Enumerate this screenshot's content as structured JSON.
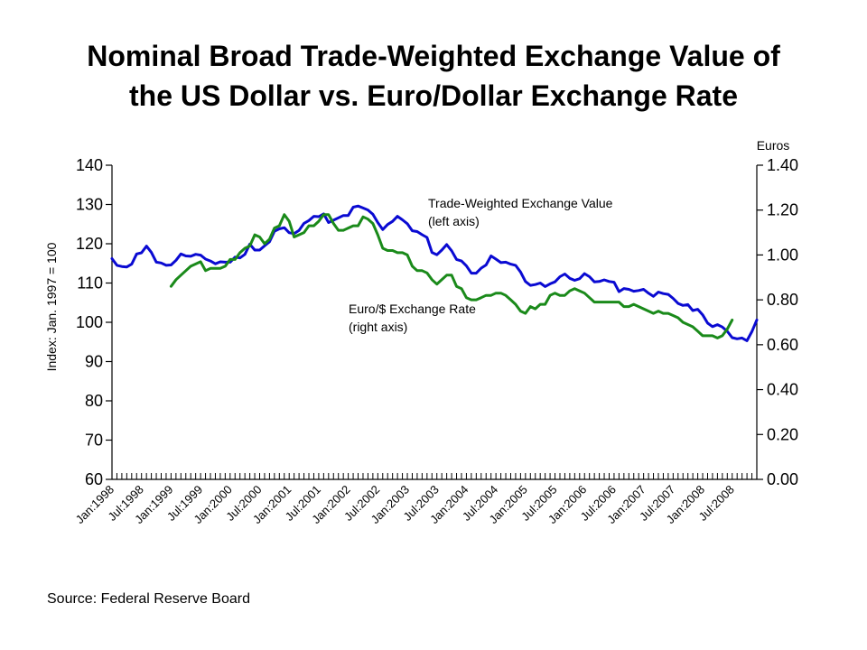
{
  "title": {
    "line1": "Nominal Broad Trade-Weighted Exchange Value of",
    "line2": "the US Dollar vs. Euro/Dollar Exchange Rate"
  },
  "source": "Source:  Federal Reserve Board",
  "chart_data": {
    "type": "line",
    "grid": false,
    "left_axis": {
      "label": "Index:  Jan. 1997 = 100",
      "range": [
        60,
        140
      ],
      "ticks": [
        "60",
        "70",
        "80",
        "90",
        "100",
        "110",
        "120",
        "130",
        "140"
      ]
    },
    "right_axis": {
      "label": "Euros",
      "range": [
        0.0,
        1.4
      ],
      "ticks": [
        "0.00",
        "0.20",
        "0.40",
        "0.60",
        "0.80",
        "1.00",
        "1.20",
        "1.40"
      ]
    },
    "x_tick_labels": [
      "Jan:1998",
      "Jul:1998",
      "Jan:1999",
      "Jul:1999",
      "Jan:2000",
      "Jul:2000",
      "Jan:2001",
      "Jul:2001",
      "Jan:2002",
      "Jul:2002",
      "Jan:2003",
      "Jul:2003",
      "Jan:2004",
      "Jul:2004",
      "Jan:2005",
      "Jul:2005",
      "Jan:2006",
      "Jul:2006",
      "Jan:2007",
      "Jul:2007",
      "Jan:2008",
      "Jul:2008"
    ],
    "start_label": "Jan:1998",
    "series": [
      {
        "name": "Trade-Weighted Exchange Value (left axis)",
        "axis": "left",
        "color": "#0a0ad2",
        "start_index": 0,
        "values": [
          116.2,
          114.5,
          114.2,
          114.1,
          114.8,
          117.4,
          117.7,
          119.4,
          117.8,
          115.3,
          115.1,
          114.5,
          114.6,
          115.8,
          117.4,
          116.9,
          116.8,
          117.3,
          117.1,
          116.1,
          115.6,
          114.9,
          115.4,
          115.3,
          115.3,
          116.6,
          116.4,
          117.3,
          119.9,
          118.4,
          118.4,
          119.5,
          120.5,
          123.2,
          123.8,
          124.1,
          122.8,
          122.6,
          123.4,
          125.2,
          125.9,
          127.0,
          126.9,
          127.6,
          125.4,
          126.0,
          126.6,
          127.2,
          127.2,
          129.3,
          129.6,
          129.1,
          128.6,
          127.5,
          125.4,
          123.6,
          124.9,
          125.7,
          127.0,
          126.1,
          125.1,
          123.3,
          123.1,
          122.3,
          121.6,
          117.8,
          117.2,
          118.4,
          119.8,
          118.2,
          116.0,
          115.6,
          114.4,
          112.5,
          112.5,
          113.8,
          114.6,
          116.9,
          116.1,
          115.2,
          115.3,
          114.8,
          114.5,
          112.8,
          110.4,
          109.4,
          109.6,
          110.0,
          109.1,
          109.8,
          110.3,
          111.6,
          112.3,
          111.2,
          110.7,
          111.1,
          112.4,
          111.6,
          110.3,
          110.4,
          110.8,
          110.4,
          110.2,
          107.8,
          108.6,
          108.4,
          107.9,
          108.1,
          108.4,
          107.4,
          106.6,
          107.7,
          107.3,
          107.1,
          106.1,
          104.8,
          104.3,
          104.5,
          103.0,
          103.3,
          101.9,
          99.8,
          98.9,
          99.4,
          98.8,
          97.7,
          96.1,
          95.8,
          96.0,
          95.3,
          97.6,
          100.6
        ]
      },
      {
        "name": "Euro/$ Exchange Rate (right axis)",
        "axis": "right",
        "color": "#1a8a1a",
        "start_index": 12,
        "values": [
          0.86,
          0.89,
          0.91,
          0.93,
          0.95,
          0.96,
          0.97,
          0.93,
          0.94,
          0.94,
          0.94,
          0.95,
          0.98,
          0.98,
          1.01,
          1.03,
          1.04,
          1.09,
          1.08,
          1.05,
          1.07,
          1.12,
          1.13,
          1.18,
          1.15,
          1.08,
          1.09,
          1.1,
          1.13,
          1.13,
          1.15,
          1.18,
          1.18,
          1.14,
          1.11,
          1.11,
          1.12,
          1.13,
          1.13,
          1.17,
          1.16,
          1.14,
          1.09,
          1.03,
          1.02,
          1.02,
          1.01,
          1.01,
          1.0,
          0.95,
          0.93,
          0.93,
          0.92,
          0.89,
          0.87,
          0.89,
          0.91,
          0.91,
          0.86,
          0.85,
          0.81,
          0.8,
          0.8,
          0.81,
          0.82,
          0.82,
          0.83,
          0.83,
          0.82,
          0.8,
          0.78,
          0.75,
          0.74,
          0.77,
          0.76,
          0.78,
          0.78,
          0.82,
          0.83,
          0.82,
          0.82,
          0.84,
          0.85,
          0.84,
          0.83,
          0.81,
          0.79,
          0.79,
          0.79,
          0.79,
          0.79,
          0.79,
          0.77,
          0.77,
          0.78,
          0.77,
          0.76,
          0.75,
          0.74,
          0.75,
          0.74,
          0.74,
          0.73,
          0.72,
          0.7,
          0.69,
          0.68,
          0.66,
          0.64,
          0.64,
          0.64,
          0.63,
          0.64,
          0.67,
          0.71
        ]
      }
    ],
    "annotations": [
      {
        "text_lines": [
          "Trade-Weighted Exchange Value",
          "(left axis)"
        ]
      },
      {
        "text_lines": [
          "Euro/$ Exchange Rate",
          "(right axis)"
        ]
      }
    ]
  }
}
